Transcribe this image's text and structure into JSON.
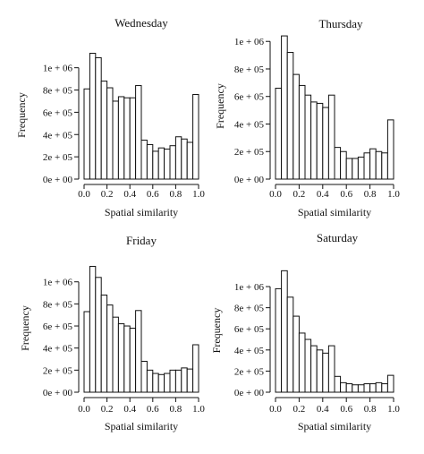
{
  "chart_data": [
    {
      "type": "bar",
      "title": "Wednesday",
      "xlabel": "Spatial similarity",
      "ylabel": "Frequency",
      "x_ticks": [
        "0.0",
        "0.2",
        "0.4",
        "0.6",
        "0.8",
        "1.0"
      ],
      "y_ticks": [
        "0e + 00",
        "2e + 05",
        "4e + 05",
        "6e + 05",
        "8e + 05",
        "1e + 06"
      ],
      "xlim": [
        0,
        1
      ],
      "ylim": [
        0,
        1150000
      ],
      "bin_width": 0.05,
      "bin_starts": [
        0.0,
        0.05,
        0.1,
        0.15,
        0.2,
        0.25,
        0.3,
        0.35,
        0.4,
        0.45,
        0.5,
        0.55,
        0.6,
        0.65,
        0.7,
        0.75,
        0.8,
        0.85,
        0.9,
        0.95
      ],
      "values": [
        810000,
        1130000,
        1090000,
        880000,
        820000,
        700000,
        740000,
        730000,
        730000,
        840000,
        350000,
        310000,
        250000,
        280000,
        270000,
        300000,
        380000,
        360000,
        330000,
        760000
      ]
    },
    {
      "type": "bar",
      "title": "Thursday",
      "xlabel": "Spatial similarity",
      "ylabel": "Frequency",
      "x_ticks": [
        "0.0",
        "0.2",
        "0.4",
        "0.6",
        "0.8",
        "1.0"
      ],
      "y_ticks": [
        "0e + 00",
        "2e + 05",
        "4e + 05",
        "6e + 05",
        "8e + 05",
        "1e + 06"
      ],
      "xlim": [
        0,
        1
      ],
      "ylim": [
        0,
        1060000
      ],
      "bin_width": 0.05,
      "bin_starts": [
        0.0,
        0.05,
        0.1,
        0.15,
        0.2,
        0.25,
        0.3,
        0.35,
        0.4,
        0.45,
        0.5,
        0.55,
        0.6,
        0.65,
        0.7,
        0.75,
        0.8,
        0.85,
        0.9,
        0.95
      ],
      "values": [
        660000,
        1040000,
        920000,
        760000,
        680000,
        610000,
        560000,
        550000,
        520000,
        610000,
        230000,
        200000,
        150000,
        150000,
        160000,
        190000,
        220000,
        200000,
        190000,
        430000
      ]
    },
    {
      "type": "bar",
      "title": "Friday",
      "xlabel": "Spatial similarity",
      "ylabel": "Frequency",
      "x_ticks": [
        "0.0",
        "0.2",
        "0.4",
        "0.6",
        "0.8",
        "1.0"
      ],
      "y_ticks": [
        "0e + 00",
        "2e + 05",
        "4e + 05",
        "6e + 05",
        "8e + 05",
        "1e + 06"
      ],
      "xlim": [
        0,
        1
      ],
      "ylim": [
        0,
        1160000
      ],
      "bin_width": 0.05,
      "bin_starts": [
        0.0,
        0.05,
        0.1,
        0.15,
        0.2,
        0.25,
        0.3,
        0.35,
        0.4,
        0.45,
        0.5,
        0.55,
        0.6,
        0.65,
        0.7,
        0.75,
        0.8,
        0.85,
        0.9,
        0.95
      ],
      "values": [
        730000,
        1140000,
        1040000,
        880000,
        790000,
        680000,
        620000,
        600000,
        580000,
        740000,
        280000,
        200000,
        170000,
        160000,
        170000,
        200000,
        200000,
        220000,
        210000,
        430000
      ]
    },
    {
      "type": "bar",
      "title": "Saturday",
      "xlabel": "Spatial similarity",
      "ylabel": "Frequency",
      "x_ticks": [
        "0.0",
        "0.2",
        "0.4",
        "0.6",
        "0.8",
        "1.0"
      ],
      "y_ticks": [
        "0e + 00",
        "2e + 05",
        "4e + 05",
        "6e + 05",
        "8e + 05",
        "1e + 06"
      ],
      "xlim": [
        0,
        1
      ],
      "ylim": [
        0,
        1170000
      ],
      "bin_width": 0.05,
      "bin_starts": [
        0.0,
        0.05,
        0.1,
        0.15,
        0.2,
        0.25,
        0.3,
        0.35,
        0.4,
        0.45,
        0.5,
        0.55,
        0.6,
        0.65,
        0.7,
        0.75,
        0.8,
        0.85,
        0.9,
        0.95
      ],
      "values": [
        980000,
        1150000,
        900000,
        720000,
        560000,
        500000,
        440000,
        400000,
        370000,
        440000,
        150000,
        90000,
        80000,
        70000,
        70000,
        80000,
        80000,
        90000,
        80000,
        160000
      ]
    }
  ]
}
